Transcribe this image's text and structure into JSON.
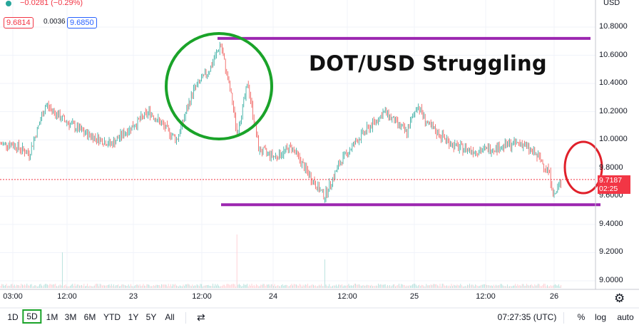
{
  "header": {
    "change_text": "−0.0281 (−0.29%)",
    "bid": "9.6814",
    "spread": "0.0036",
    "ask": "9.6850",
    "currency": "USD"
  },
  "annotation_title": "DOT/USD Struggling",
  "last_price": {
    "value": "9.7187",
    "countdown": "02:25"
  },
  "toolbar": {
    "ranges": [
      "1D",
      "5D",
      "1M",
      "3M",
      "6M",
      "YTD",
      "1Y",
      "5Y",
      "All"
    ],
    "selected_range": "5D",
    "time": "07:27:35 (UTC)",
    "percent_label": "%",
    "log_label": "log",
    "auto_label": "auto"
  },
  "icons": [
    "compare-icon",
    "settings-icon"
  ],
  "colors": {
    "up": "#26a69a",
    "down": "#ef5350",
    "resistance_line": "#9c27b0",
    "highlight_circle": "#1aa329",
    "warning_circle": "#e0202a",
    "last_price": "#f23645",
    "selected_range_border": "#1aa329"
  },
  "chart_data": {
    "type": "line",
    "series_style": "candlestick",
    "ylim": [
      8.94,
      10.98
    ],
    "y_ticks": [
      "10.8000",
      "10.6000",
      "10.4000",
      "10.2000",
      "10.0000",
      "9.8000",
      "9.6000",
      "9.4000",
      "9.2000",
      "9.0000"
    ],
    "x_ticks": [
      "03:00",
      "12:00",
      "23",
      "12:00",
      "24",
      "12:00",
      "25",
      "12:00",
      "26"
    ],
    "resistance": 10.72,
    "support": 9.54,
    "price_path": [
      {
        "t": "03:00",
        "price": 9.97
      },
      {
        "t": "06:00",
        "price": 9.9
      },
      {
        "t": "09:00",
        "price": 10.25
      },
      {
        "t": "12:00",
        "price": 10.15
      },
      {
        "t": "16:00",
        "price": 10.05
      },
      {
        "t": "21:00",
        "price": 9.97
      },
      {
        "t": "23 04:00",
        "price": 10.2
      },
      {
        "t": "23 09:00",
        "price": 10.0
      },
      {
        "t": "23 12:00",
        "price": 10.35
      },
      {
        "t": "23 15:00",
        "price": 10.5
      },
      {
        "t": "23 17:00",
        "price": 10.68
      },
      {
        "t": "23 19:00",
        "price": 10.3
      },
      {
        "t": "23 20:00",
        "price": 10.05
      },
      {
        "t": "23 22:00",
        "price": 10.4
      },
      {
        "t": "24 00:00",
        "price": 9.93
      },
      {
        "t": "24 03:00",
        "price": 9.88
      },
      {
        "t": "24 06:00",
        "price": 9.95
      },
      {
        "t": "24 09:00",
        "price": 9.76
      },
      {
        "t": "24 11:00",
        "price": 9.65
      },
      {
        "t": "24 12:00",
        "price": 9.6
      },
      {
        "t": "24 15:00",
        "price": 9.85
      },
      {
        "t": "24 18:00",
        "price": 10.0
      },
      {
        "t": "24 23:00",
        "price": 10.2
      },
      {
        "t": "25 03:00",
        "price": 10.05
      },
      {
        "t": "25 05:00",
        "price": 10.25
      },
      {
        "t": "25 07:00",
        "price": 10.1
      },
      {
        "t": "25 12:00",
        "price": 9.95
      },
      {
        "t": "25 16:00",
        "price": 9.92
      },
      {
        "t": "25 20:00",
        "price": 9.95
      },
      {
        "t": "26 00:00",
        "price": 9.98
      },
      {
        "t": "26 03:00",
        "price": 9.88
      },
      {
        "t": "26 05:00",
        "price": 9.78
      },
      {
        "t": "26 06:00",
        "price": 9.6
      },
      {
        "t": "26 07:27",
        "price": 9.72
      }
    ],
    "volume_spikes": [
      {
        "t": "12:00",
        "volume": 0.5
      },
      {
        "t": "23 20:00",
        "volume": 0.75
      },
      {
        "t": "24 12:00",
        "volume": 0.4
      }
    ]
  }
}
